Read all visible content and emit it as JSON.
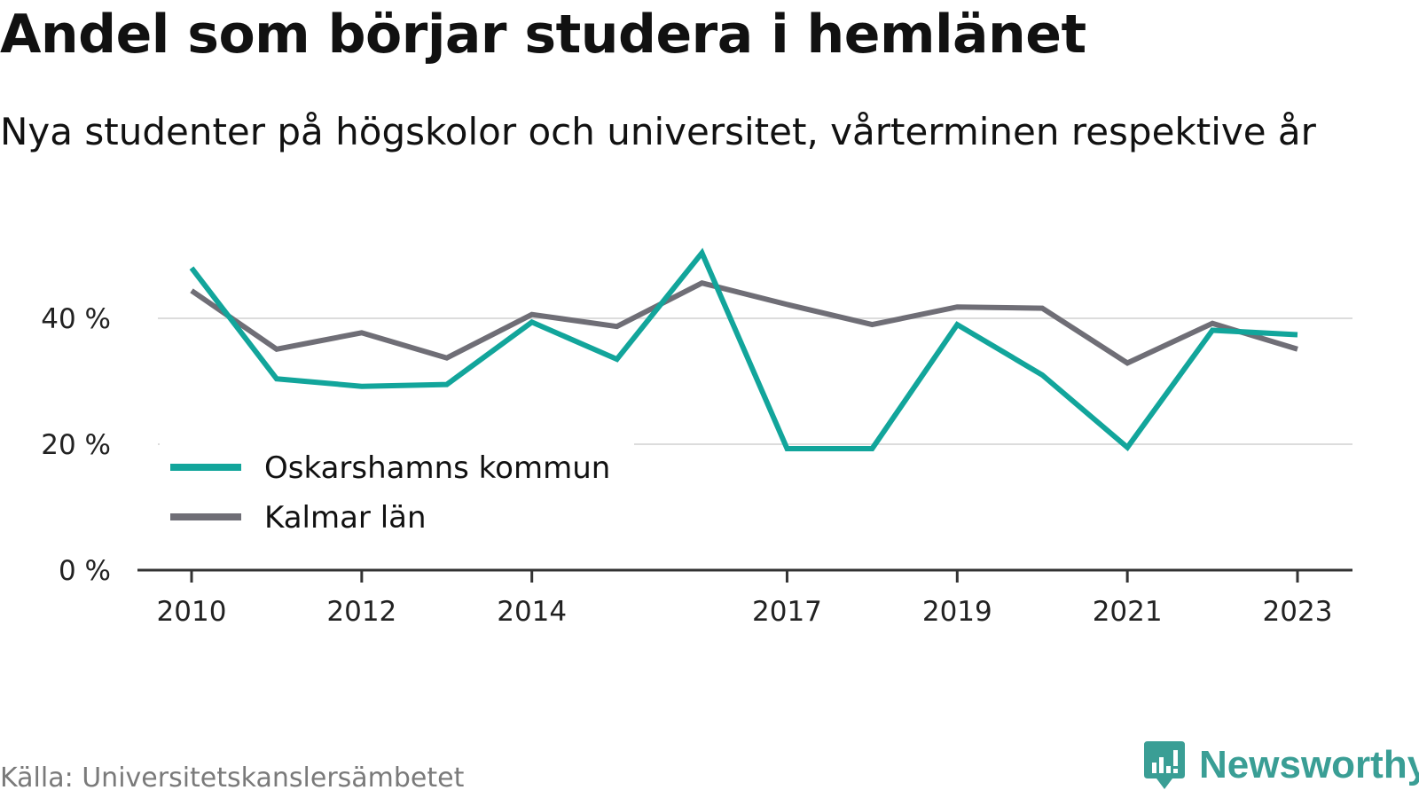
{
  "title": "Andel som börjar studera i hemlänet",
  "subtitle": "Nya studenter på högskolor och universitet, vårterminen respektive år",
  "source": "Källa: Universitetskanslersämbetet",
  "brand": {
    "name": "Newsworthy",
    "icon": "newsworthy-logo-icon",
    "color": "#3a9e95"
  },
  "chart_data": {
    "type": "line",
    "x": [
      2010,
      2011,
      2012,
      2013,
      2014,
      2015,
      2016,
      2017,
      2018,
      2019,
      2020,
      2021,
      2022,
      2023
    ],
    "x_ticks": [
      "2010",
      "2012",
      "2014",
      "2017",
      "2019",
      "2021",
      "2023"
    ],
    "y_ticks": [
      "0 %",
      "20 %",
      "40 %"
    ],
    "ylim": [
      0,
      56
    ],
    "grid": true,
    "legend_position": "bottom-left",
    "series": [
      {
        "name": "Oskarshamns kommun",
        "color": "#12a59b",
        "values": [
          48.0,
          30.4,
          29.2,
          29.5,
          39.4,
          33.5,
          50.4,
          19.3,
          19.3,
          39.0,
          31.0,
          19.5,
          38.1,
          37.4
        ]
      },
      {
        "name": "Kalmar län",
        "color": "#6f6e76",
        "values": [
          44.4,
          35.1,
          37.7,
          33.7,
          40.6,
          38.7,
          45.6,
          42.2,
          39.0,
          41.8,
          41.6,
          32.9,
          39.2,
          35.1
        ]
      }
    ]
  }
}
